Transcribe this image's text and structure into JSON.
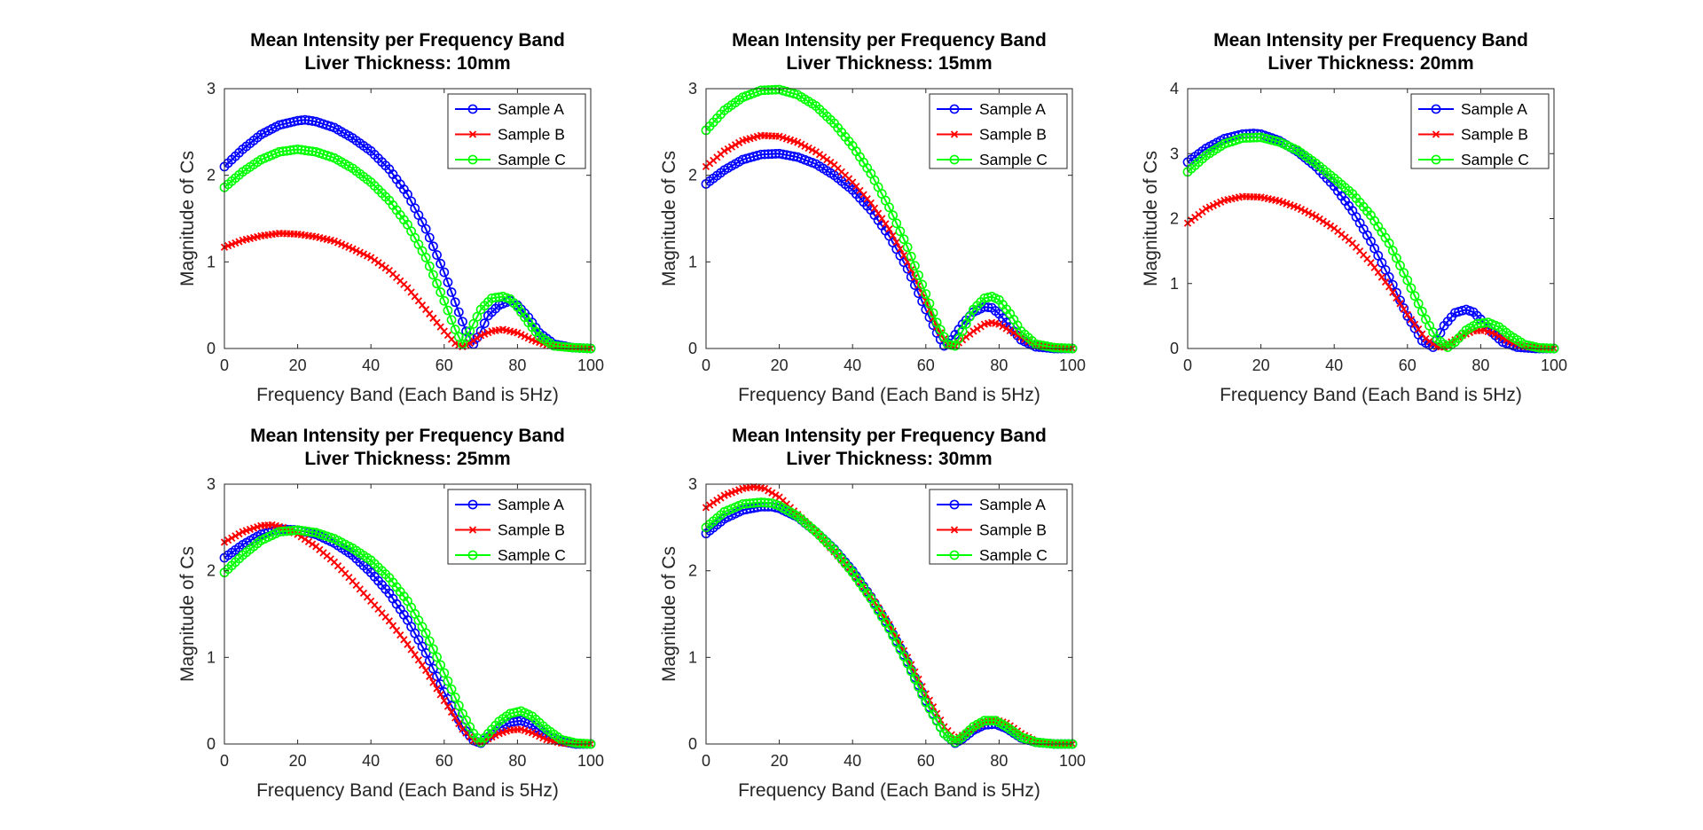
{
  "figure": {
    "background": "#ffffff"
  },
  "chart_data": [
    {
      "type": "line",
      "title": "Mean Intensity per Frequency Band",
      "subtitle": "Liver Thickness: 10mm",
      "xlabel": "Frequency Band (Each Band is 5Hz)",
      "ylabel": "Magnitude of Cs",
      "xlim": [
        0,
        100
      ],
      "ylim": [
        0,
        3
      ],
      "xticks": [
        0,
        20,
        40,
        60,
        80,
        100
      ],
      "yticks": [
        0,
        1,
        2,
        3
      ],
      "grid": false,
      "legend": "top-right",
      "series": [
        {
          "name": "Sample A",
          "color": "#0000ff",
          "marker": "o",
          "x": [
            0,
            5,
            10,
            15,
            20,
            22,
            25,
            30,
            35,
            40,
            45,
            50,
            55,
            60,
            64,
            66,
            68,
            70,
            72,
            75,
            78,
            80,
            83,
            86,
            90,
            95,
            100
          ],
          "y": [
            2.1,
            2.3,
            2.47,
            2.58,
            2.63,
            2.64,
            2.62,
            2.55,
            2.43,
            2.28,
            2.07,
            1.78,
            1.38,
            0.88,
            0.42,
            0.2,
            0.05,
            0.2,
            0.38,
            0.5,
            0.55,
            0.5,
            0.36,
            0.18,
            0.05,
            0.01,
            0
          ]
        },
        {
          "name": "Sample B",
          "color": "#ff0000",
          "marker": "x",
          "x": [
            0,
            5,
            10,
            15,
            20,
            25,
            30,
            35,
            40,
            45,
            50,
            55,
            60,
            63,
            65,
            67,
            70,
            73,
            76,
            80,
            84,
            88,
            92,
            96,
            100
          ],
          "y": [
            1.17,
            1.25,
            1.3,
            1.33,
            1.32,
            1.29,
            1.24,
            1.15,
            1.05,
            0.9,
            0.7,
            0.45,
            0.2,
            0.06,
            0.02,
            0.06,
            0.15,
            0.2,
            0.22,
            0.18,
            0.1,
            0.04,
            0.01,
            0,
            0
          ]
        },
        {
          "name": "Sample C",
          "color": "#00ff00",
          "marker": "o",
          "x": [
            0,
            5,
            10,
            15,
            20,
            25,
            30,
            35,
            40,
            45,
            50,
            55,
            60,
            63,
            65,
            67,
            70,
            73,
            76,
            78,
            80,
            83,
            86,
            90,
            95,
            100
          ],
          "y": [
            1.86,
            2.04,
            2.18,
            2.27,
            2.3,
            2.27,
            2.2,
            2.08,
            1.92,
            1.71,
            1.43,
            1.05,
            0.55,
            0.22,
            0.05,
            0.2,
            0.45,
            0.58,
            0.6,
            0.57,
            0.48,
            0.3,
            0.14,
            0.03,
            0.01,
            0
          ]
        }
      ]
    },
    {
      "type": "line",
      "title": "Mean Intensity per Frequency Band",
      "subtitle": "Liver Thickness: 15mm",
      "xlabel": "Frequency Band (Each Band is 5Hz)",
      "ylabel": "Magnitude of Cs",
      "xlim": [
        0,
        100
      ],
      "ylim": [
        0,
        3
      ],
      "xticks": [
        0,
        20,
        40,
        60,
        80,
        100
      ],
      "yticks": [
        0,
        1,
        2,
        3
      ],
      "grid": false,
      "legend": "top-right",
      "series": [
        {
          "name": "Sample A",
          "color": "#0000ff",
          "marker": "o",
          "x": [
            0,
            5,
            10,
            15,
            20,
            25,
            30,
            35,
            40,
            45,
            50,
            55,
            60,
            63,
            65,
            67,
            70,
            73,
            76,
            78,
            80,
            83,
            86,
            90,
            95,
            100
          ],
          "y": [
            1.9,
            2.06,
            2.18,
            2.24,
            2.25,
            2.21,
            2.13,
            2.0,
            1.83,
            1.6,
            1.3,
            0.92,
            0.45,
            0.18,
            0.03,
            0.1,
            0.28,
            0.42,
            0.48,
            0.47,
            0.4,
            0.25,
            0.1,
            0.02,
            0,
            0
          ]
        },
        {
          "name": "Sample B",
          "color": "#ff0000",
          "marker": "x",
          "x": [
            0,
            5,
            10,
            15,
            20,
            25,
            30,
            35,
            40,
            45,
            50,
            55,
            60,
            63,
            66,
            68,
            70,
            73,
            76,
            78,
            80,
            84,
            88,
            92,
            96,
            100
          ],
          "y": [
            2.1,
            2.28,
            2.4,
            2.46,
            2.45,
            2.38,
            2.27,
            2.12,
            1.92,
            1.68,
            1.38,
            1.0,
            0.55,
            0.25,
            0.04,
            0.03,
            0.1,
            0.2,
            0.28,
            0.3,
            0.28,
            0.18,
            0.08,
            0.02,
            0,
            0
          ]
        },
        {
          "name": "Sample C",
          "color": "#00ff00",
          "marker": "o",
          "x": [
            0,
            5,
            10,
            15,
            20,
            25,
            30,
            35,
            40,
            45,
            50,
            55,
            60,
            63,
            66,
            68,
            70,
            73,
            76,
            78,
            80,
            83,
            86,
            90,
            95,
            100
          ],
          "y": [
            2.52,
            2.75,
            2.9,
            2.98,
            2.99,
            2.93,
            2.8,
            2.6,
            2.34,
            2.02,
            1.63,
            1.17,
            0.63,
            0.3,
            0.05,
            0.03,
            0.2,
            0.45,
            0.58,
            0.6,
            0.56,
            0.4,
            0.2,
            0.05,
            0.01,
            0
          ]
        }
      ]
    },
    {
      "type": "line",
      "title": "Mean Intensity per Frequency Band",
      "subtitle": "Liver Thickness: 20mm",
      "xlabel": "Frequency Band (Each Band is 5Hz)",
      "ylabel": "Magnitude of Cs",
      "xlim": [
        0,
        100
      ],
      "ylim": [
        0,
        4
      ],
      "xticks": [
        0,
        20,
        40,
        60,
        80,
        100
      ],
      "yticks": [
        0,
        1,
        2,
        3,
        4
      ],
      "grid": false,
      "legend": "top-right",
      "series": [
        {
          "name": "Sample A",
          "color": "#0000ff",
          "marker": "o",
          "x": [
            0,
            5,
            10,
            15,
            18,
            20,
            25,
            30,
            35,
            40,
            45,
            50,
            55,
            60,
            64,
            67,
            70,
            73,
            76,
            78,
            80,
            83,
            86,
            90,
            95,
            100
          ],
          "y": [
            2.87,
            3.08,
            3.23,
            3.3,
            3.31,
            3.3,
            3.2,
            3.03,
            2.8,
            2.5,
            2.12,
            1.65,
            1.1,
            0.5,
            0.12,
            0.02,
            0.35,
            0.55,
            0.6,
            0.56,
            0.45,
            0.25,
            0.1,
            0.02,
            0,
            0
          ]
        },
        {
          "name": "Sample B",
          "color": "#ff0000",
          "marker": "x",
          "x": [
            0,
            5,
            10,
            15,
            20,
            25,
            30,
            35,
            40,
            45,
            50,
            55,
            60,
            65,
            68,
            70,
            72,
            75,
            78,
            81,
            84,
            88,
            92,
            96,
            100
          ],
          "y": [
            1.93,
            2.15,
            2.28,
            2.34,
            2.33,
            2.27,
            2.17,
            2.03,
            1.85,
            1.62,
            1.32,
            0.95,
            0.52,
            0.15,
            0.03,
            0.02,
            0.1,
            0.2,
            0.27,
            0.28,
            0.22,
            0.1,
            0.03,
            0,
            0
          ]
        },
        {
          "name": "Sample C",
          "color": "#00ff00",
          "marker": "o",
          "x": [
            0,
            5,
            10,
            15,
            20,
            25,
            30,
            35,
            40,
            45,
            50,
            55,
            60,
            65,
            68,
            71,
            73,
            76,
            79,
            82,
            85,
            88,
            92,
            96,
            100
          ],
          "y": [
            2.72,
            2.97,
            3.15,
            3.24,
            3.25,
            3.18,
            3.05,
            2.85,
            2.62,
            2.38,
            2.05,
            1.62,
            1.05,
            0.45,
            0.15,
            0.02,
            0.1,
            0.28,
            0.38,
            0.4,
            0.33,
            0.2,
            0.06,
            0.01,
            0
          ]
        }
      ]
    },
    {
      "type": "line",
      "title": "Mean Intensity per Frequency Band",
      "subtitle": "Liver Thickness: 25mm",
      "xlabel": "Frequency Band (Each Band is 5Hz)",
      "ylabel": "Magnitude of Cs",
      "xlim": [
        0,
        100
      ],
      "ylim": [
        0,
        3
      ],
      "xticks": [
        0,
        20,
        40,
        60,
        80,
        100
      ],
      "yticks": [
        0,
        1,
        2,
        3
      ],
      "grid": false,
      "legend": "top-right",
      "series": [
        {
          "name": "Sample A",
          "color": "#0000ff",
          "marker": "o",
          "x": [
            0,
            5,
            10,
            15,
            20,
            25,
            30,
            35,
            40,
            45,
            50,
            55,
            60,
            65,
            68,
            70,
            72,
            75,
            78,
            81,
            84,
            88,
            92,
            96,
            100
          ],
          "y": [
            2.15,
            2.3,
            2.42,
            2.48,
            2.47,
            2.42,
            2.32,
            2.18,
            1.98,
            1.74,
            1.43,
            1.05,
            0.6,
            0.2,
            0.04,
            0.01,
            0.08,
            0.18,
            0.25,
            0.27,
            0.22,
            0.1,
            0.03,
            0,
            0
          ]
        },
        {
          "name": "Sample B",
          "color": "#ff0000",
          "marker": "x",
          "x": [
            0,
            5,
            10,
            13,
            16,
            20,
            25,
            30,
            35,
            40,
            45,
            50,
            55,
            60,
            65,
            68,
            70,
            72,
            75,
            78,
            81,
            84,
            88,
            92,
            96,
            100
          ],
          "y": [
            2.33,
            2.45,
            2.52,
            2.53,
            2.5,
            2.42,
            2.28,
            2.1,
            1.88,
            1.65,
            1.42,
            1.15,
            0.85,
            0.5,
            0.17,
            0.04,
            0.01,
            0.06,
            0.12,
            0.16,
            0.17,
            0.13,
            0.05,
            0.01,
            0,
            0
          ]
        },
        {
          "name": "Sample C",
          "color": "#00ff00",
          "marker": "o",
          "x": [
            0,
            5,
            10,
            15,
            20,
            25,
            30,
            35,
            40,
            45,
            50,
            55,
            60,
            65,
            68,
            70,
            72,
            75,
            78,
            81,
            84,
            88,
            92,
            96,
            100
          ],
          "y": [
            1.98,
            2.18,
            2.35,
            2.45,
            2.47,
            2.44,
            2.37,
            2.26,
            2.12,
            1.92,
            1.65,
            1.28,
            0.82,
            0.35,
            0.12,
            0.02,
            0.12,
            0.26,
            0.35,
            0.38,
            0.32,
            0.17,
            0.05,
            0.01,
            0
          ]
        }
      ]
    },
    {
      "type": "line",
      "title": "Mean Intensity per Frequency Band",
      "subtitle": "Liver Thickness: 30mm",
      "xlabel": "Frequency Band (Each Band is 5Hz)",
      "ylabel": "Magnitude of Cs",
      "xlim": [
        0,
        100
      ],
      "ylim": [
        0,
        3
      ],
      "xticks": [
        0,
        20,
        40,
        60,
        80,
        100
      ],
      "yticks": [
        0,
        1,
        2,
        3
      ],
      "grid": false,
      "legend": "top-right",
      "series": [
        {
          "name": "Sample A",
          "color": "#0000ff",
          "marker": "o",
          "x": [
            0,
            5,
            10,
            15,
            18,
            20,
            25,
            30,
            35,
            40,
            45,
            50,
            55,
            60,
            65,
            68,
            70,
            73,
            76,
            79,
            82,
            86,
            90,
            95,
            100
          ],
          "y": [
            2.43,
            2.6,
            2.7,
            2.74,
            2.74,
            2.72,
            2.62,
            2.45,
            2.25,
            2.0,
            1.7,
            1.35,
            0.95,
            0.5,
            0.12,
            0.01,
            0.06,
            0.16,
            0.22,
            0.23,
            0.18,
            0.07,
            0.02,
            0,
            0
          ]
        },
        {
          "name": "Sample B",
          "color": "#ff0000",
          "marker": "x",
          "x": [
            0,
            5,
            10,
            13,
            16,
            20,
            25,
            30,
            35,
            40,
            45,
            50,
            55,
            60,
            65,
            68,
            70,
            73,
            76,
            79,
            82,
            86,
            90,
            95,
            100
          ],
          "y": [
            2.73,
            2.87,
            2.95,
            2.97,
            2.95,
            2.85,
            2.65,
            2.45,
            2.22,
            1.98,
            1.7,
            1.38,
            1.0,
            0.58,
            0.2,
            0.06,
            0.1,
            0.18,
            0.25,
            0.28,
            0.24,
            0.12,
            0.03,
            0.01,
            0
          ]
        },
        {
          "name": "Sample C",
          "color": "#00ff00",
          "marker": "o",
          "x": [
            0,
            5,
            10,
            15,
            18,
            20,
            25,
            30,
            35,
            40,
            45,
            50,
            55,
            60,
            65,
            68,
            70,
            73,
            76,
            79,
            82,
            86,
            90,
            95,
            100
          ],
          "y": [
            2.5,
            2.68,
            2.77,
            2.79,
            2.78,
            2.75,
            2.63,
            2.45,
            2.24,
            1.98,
            1.68,
            1.33,
            0.93,
            0.48,
            0.12,
            0.02,
            0.08,
            0.2,
            0.27,
            0.27,
            0.2,
            0.08,
            0.02,
            0,
            0
          ]
        }
      ]
    }
  ]
}
